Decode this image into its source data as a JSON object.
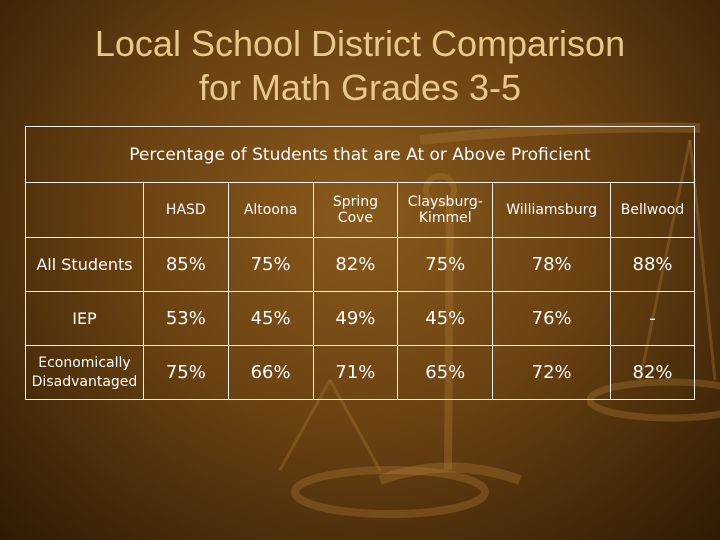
{
  "slide": {
    "title_line1": "Local School District Comparison",
    "title_line2": "for Math Grades 3-5"
  },
  "table": {
    "caption": "Percentage of Students that are At or Above Proficient",
    "columns": [
      {
        "line1": "HASD",
        "line2": ""
      },
      {
        "line1": "Altoona",
        "line2": ""
      },
      {
        "line1": "Spring",
        "line2": "Cove"
      },
      {
        "line1": "Claysburg-",
        "line2": "Kimmel"
      },
      {
        "line1": "Williamsburg",
        "line2": ""
      },
      {
        "line1": "Bellwood",
        "line2": ""
      }
    ],
    "rows": [
      {
        "label_line1": "All Students",
        "label_line2": "",
        "values": [
          "85%",
          "75%",
          "82%",
          "75%",
          "78%",
          "88%"
        ]
      },
      {
        "label_line1": "IEP",
        "label_line2": "",
        "values": [
          "53%",
          "45%",
          "49%",
          "45%",
          "76%",
          "-"
        ]
      },
      {
        "label_line1": "Economically",
        "label_line2": "Disadvantaged",
        "values": [
          "75%",
          "66%",
          "71%",
          "65%",
          "72%",
          "82%"
        ]
      }
    ]
  },
  "colors": {
    "title": "#e9c98b",
    "text": "#ffffff",
    "grid": "#f2f2f2",
    "background": "#6b4212"
  },
  "decoration": {
    "icon": "balance-scale-icon"
  }
}
